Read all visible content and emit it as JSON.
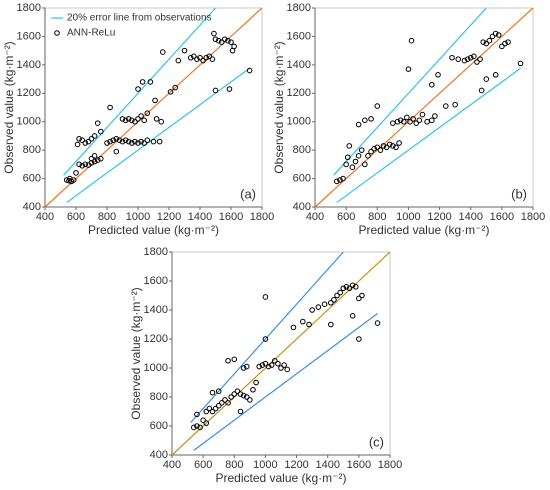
{
  "chart_data": [
    {
      "type": "scatter",
      "label": "(a)",
      "xlabel": "Predicted value (kg·m⁻²)",
      "ylabel": "Observed value (kg·m⁻²)",
      "xlim": [
        400,
        1800
      ],
      "ylim": [
        400,
        1800
      ],
      "xticks": [
        400,
        600,
        800,
        1000,
        1200,
        1400,
        1600,
        1800
      ],
      "yticks": [
        400,
        600,
        800,
        1000,
        1200,
        1400,
        1600,
        1800
      ],
      "legend": "upper left",
      "reference_line": {
        "type": "line",
        "color": "#e8792a",
        "x": [
          400,
          1800
        ],
        "values": [
          400,
          1800
        ]
      },
      "series": [
        {
          "type": "line",
          "name": "20% error line from observations",
          "color": "#2ec4e6",
          "x": [
            520,
            1500,
            null,
            540,
            1720
          ],
          "values": [
            624,
            1800,
            null,
            432,
            1376
          ]
        },
        {
          "type": "scatter",
          "name": "ANN-ReLu",
          "color": "#000000",
          "x": [
            540,
            555,
            570,
            585,
            560,
            600,
            620,
            640,
            660,
            680,
            700,
            720,
            740,
            760,
            700,
            720,
            610,
            620,
            640,
            660,
            680,
            700,
            720,
            740,
            760,
            800,
            820,
            840,
            860,
            880,
            900,
            920,
            940,
            960,
            980,
            1000,
            1020,
            1040,
            1060,
            1100,
            1140,
            820,
            900,
            920,
            940,
            960,
            980,
            1000,
            1020,
            1040,
            1060,
            1000,
            1030,
            1080,
            1110,
            1120,
            1150,
            1160,
            1210,
            1240,
            1260,
            1300,
            1340,
            1360,
            1380,
            1400,
            1420,
            1440,
            1460,
            1480,
            1490,
            1500,
            1520,
            1540,
            1560,
            1580,
            1600,
            1610,
            1620,
            1500,
            1590,
            1720,
            860
          ],
          "values": [
            590,
            585,
            580,
            590,
            600,
            640,
            700,
            690,
            700,
            695,
            710,
            720,
            730,
            740,
            740,
            760,
            840,
            880,
            870,
            850,
            860,
            880,
            900,
            990,
            930,
            850,
            860,
            870,
            880,
            870,
            860,
            870,
            860,
            850,
            860,
            850,
            860,
            850,
            870,
            860,
            860,
            1100,
            1020,
            1010,
            1020,
            1010,
            1000,
            1020,
            1040,
            1010,
            1060,
            1230,
            1280,
            1280,
            1150,
            1020,
            1000,
            1490,
            1210,
            1240,
            1430,
            1500,
            1450,
            1460,
            1440,
            1450,
            1430,
            1450,
            1460,
            1440,
            1620,
            1580,
            1570,
            1560,
            1580,
            1570,
            1560,
            1500,
            1530,
            1220,
            1230,
            1360,
            790
          ]
        }
      ]
    },
    {
      "type": "scatter",
      "label": "(b)",
      "xlabel": "Predicted value (kg·m⁻²)",
      "ylabel": "Observed value (kg·m⁻²)",
      "xlim": [
        400,
        1800
      ],
      "ylim": [
        400,
        1800
      ],
      "xticks": [
        400,
        600,
        800,
        1000,
        1200,
        1400,
        1600,
        1800
      ],
      "yticks": [
        400,
        600,
        800,
        1000,
        1200,
        1400,
        1600,
        1800
      ],
      "reference_line": {
        "type": "line",
        "color": "#e8792a",
        "x": [
          400,
          1800
        ],
        "values": [
          400,
          1800
        ]
      },
      "series": [
        {
          "type": "line",
          "color": "#2ec4e6",
          "x": [
            520,
            1500,
            null,
            540,
            1720
          ],
          "values": [
            624,
            1800,
            null,
            432,
            1376
          ]
        },
        {
          "type": "scatter",
          "color": "#000000",
          "x": [
            540,
            560,
            580,
            600,
            610,
            620,
            640,
            660,
            680,
            700,
            720,
            740,
            760,
            780,
            800,
            820,
            840,
            860,
            880,
            900,
            920,
            940,
            680,
            720,
            760,
            800,
            900,
            930,
            950,
            970,
            990,
            1010,
            1030,
            1050,
            1070,
            1090,
            1120,
            1150,
            1170,
            1000,
            1020,
            1150,
            1190,
            1280,
            1320,
            1360,
            1380,
            1400,
            1420,
            1440,
            1460,
            1480,
            1500,
            1520,
            1540,
            1560,
            1580,
            1600,
            1620,
            1640,
            1500,
            1560,
            1720,
            1240,
            1300,
            1470
          ],
          "values": [
            580,
            590,
            600,
            700,
            750,
            830,
            680,
            720,
            760,
            800,
            700,
            760,
            790,
            810,
            820,
            800,
            830,
            820,
            840,
            830,
            820,
            850,
            980,
            1010,
            1020,
            1110,
            990,
            1000,
            1010,
            1000,
            1030,
            1000,
            1020,
            990,
            1010,
            1050,
            1000,
            1010,
            1040,
            1370,
            1570,
            1260,
            1330,
            1450,
            1440,
            1430,
            1440,
            1450,
            1460,
            1420,
            1440,
            1560,
            1550,
            1570,
            1600,
            1620,
            1610,
            1530,
            1550,
            1560,
            1300,
            1330,
            1410,
            1110,
            1120,
            1220
          ]
        }
      ]
    },
    {
      "type": "scatter",
      "label": "(c)",
      "xlabel": "Predicted value (kg·m⁻²)",
      "ylabel": "Observed value (kg·m⁻²)",
      "xlim": [
        400,
        1800
      ],
      "ylim": [
        400,
        1800
      ],
      "xticks": [
        400,
        600,
        800,
        1000,
        1200,
        1400,
        1600,
        1800
      ],
      "yticks": [
        400,
        600,
        800,
        1000,
        1200,
        1400,
        1600,
        1800
      ],
      "reference_line": {
        "type": "line",
        "color": "#c8901e",
        "x": [
          400,
          1800
        ],
        "values": [
          400,
          1800
        ]
      },
      "series": [
        {
          "type": "line",
          "color": "#3a8fe0",
          "x": [
            520,
            1500,
            null,
            540,
            1720
          ],
          "values": [
            624,
            1800,
            null,
            432,
            1376
          ]
        },
        {
          "type": "scatter",
          "color": "#000000",
          "x": [
            540,
            560,
            580,
            600,
            620,
            640,
            660,
            680,
            700,
            720,
            740,
            760,
            700,
            660,
            780,
            800,
            820,
            840,
            860,
            880,
            900,
            920,
            940,
            760,
            800,
            860,
            880,
            960,
            980,
            1000,
            1020,
            1040,
            1060,
            1080,
            1100,
            1120,
            1140,
            1000,
            1180,
            1240,
            1280,
            1300,
            1340,
            1380,
            1420,
            1440,
            1460,
            1480,
            1500,
            1520,
            1540,
            1560,
            1580,
            1600,
            1620,
            1560,
            1420,
            1600,
            1720,
            1000,
            840,
            560,
            620
          ],
          "values": [
            590,
            600,
            590,
            640,
            700,
            720,
            700,
            720,
            740,
            760,
            780,
            760,
            840,
            830,
            800,
            820,
            840,
            820,
            810,
            800,
            780,
            850,
            900,
            1050,
            1060,
            1000,
            1010,
            1010,
            1020,
            1030,
            1010,
            1020,
            1050,
            1030,
            1000,
            1020,
            990,
            1490,
            1280,
            1320,
            1300,
            1400,
            1420,
            1440,
            1450,
            1470,
            1500,
            1520,
            1550,
            1560,
            1550,
            1570,
            1560,
            1480,
            1500,
            1360,
            1300,
            1200,
            1310,
            1200,
            700,
            680,
            620
          ]
        }
      ]
    }
  ]
}
